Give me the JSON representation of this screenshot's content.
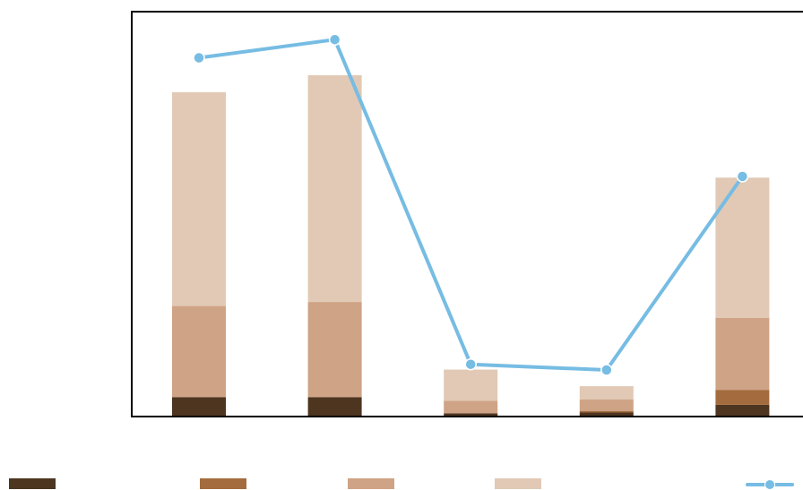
{
  "chart_data": {
    "type": "bar",
    "stacked": true,
    "title": "",
    "xlabel": "",
    "ylabel": "",
    "categories": [
      "",
      "",
      "",
      "",
      ""
    ],
    "ylim": [
      0,
      100
    ],
    "series": [
      {
        "name": "",
        "type": "bar",
        "color": "#4d3520",
        "values": [
          4.8,
          4.8,
          0.8,
          1.0,
          2.9
        ]
      },
      {
        "name": "",
        "type": "bar",
        "color": "#a46c3e",
        "values": [
          0,
          0,
          0,
          0.4,
          3.7
        ]
      },
      {
        "name": "",
        "type": "bar",
        "color": "#cfa385",
        "values": [
          22.5,
          23.5,
          3.1,
          2.8,
          17.8
        ]
      },
      {
        "name": "",
        "type": "bar",
        "color": "#e1c9b5",
        "values": [
          52.8,
          56.0,
          7.7,
          3.3,
          34.6
        ]
      }
    ],
    "line_series": {
      "name": "",
      "type": "line",
      "color": "#76bce3",
      "values": [
        88.6,
        93.1,
        12.9,
        11.5,
        59.3
      ]
    },
    "grid": false,
    "legend_position": "bottom"
  }
}
